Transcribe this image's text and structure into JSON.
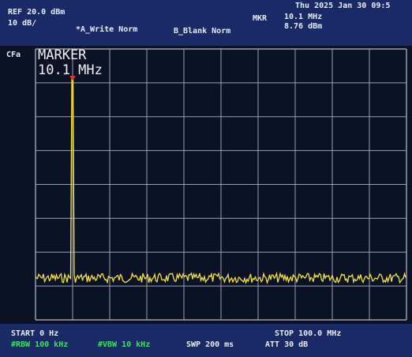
{
  "header": {
    "ref": "REF 20.0 dBm",
    "scale": "10 dB/",
    "trace_a": "*A_Write Norm",
    "trace_b": "B_Blank Norm",
    "datetime": "Thu 2025 Jan 30 09:5",
    "mkr_label": "MKR",
    "mkr_freq": "10.1 MHz",
    "mkr_level": "8.76 dBm"
  },
  "side": {
    "cf": "CFa"
  },
  "marker_box": {
    "title": "MARKER",
    "freq": "10.1 MHz"
  },
  "footer": {
    "start": "START 0 Hz",
    "stop": "STOP 100.0 MHz",
    "rbw": "#RBW 100 kHz",
    "vbw": "#VBW 10 kHz",
    "sweep": "SWP 200 ms",
    "att": "ATT 30 dB"
  }
}
